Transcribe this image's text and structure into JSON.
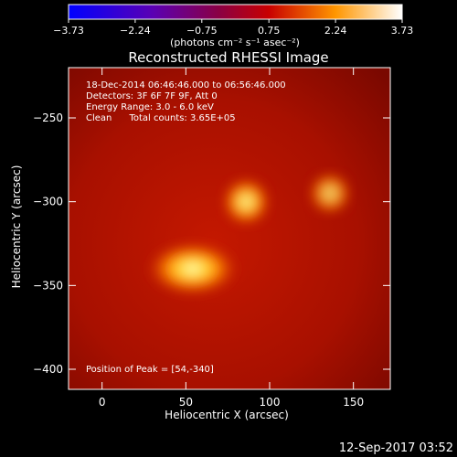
{
  "chart_data": {
    "type": "heatmap",
    "title": "Reconstructed RHESSI Image",
    "xlabel": "Heliocentric X (arcsec)",
    "ylabel": "Heliocentric Y (arcsec)",
    "xlim": [
      -20,
      172
    ],
    "ylim": [
      -412,
      -220
    ],
    "x_ticks": [
      0,
      50,
      100,
      150
    ],
    "y_ticks": [
      -250,
      -300,
      -350,
      -400
    ],
    "x_tick_labels": [
      "0",
      "50",
      "100",
      "150"
    ],
    "y_tick_labels": [
      "−250",
      "−300",
      "−350",
      "−400"
    ],
    "colorbar": {
      "colormap": "hot (black-red-orange-yellow-white)",
      "range": [
        -3.73,
        3.73
      ],
      "ticks": [
        "−3.73",
        "−2.24",
        "−0.75",
        "0.75",
        "2.24",
        "3.73"
      ],
      "tick_values": [
        -3.73,
        -2.24,
        -0.75,
        0.75,
        2.24,
        3.73
      ],
      "unit_label": "(photons cm⁻² s⁻¹ asec⁻²)"
    },
    "annotations": [
      "18-Dec-2014 06:46:46.000 to 06:56:46.000",
      "Detectors: 3F 6F 7F 9F, Att 0",
      "Energy Range: 3.0 - 6.0 keV",
      "Clean      Total counts: 3.65E+05"
    ],
    "peak_label": "Position of Peak = [54,-340]",
    "sources": [
      {
        "x": 54,
        "y": -340,
        "intensity": 3.73
      },
      {
        "x": 86,
        "y": -300,
        "intensity": 2.6
      },
      {
        "x": 136,
        "y": -295,
        "intensity": 1.2
      }
    ],
    "grid": false
  },
  "footer": {
    "timestamp": "12-Sep-2017 03:52"
  }
}
